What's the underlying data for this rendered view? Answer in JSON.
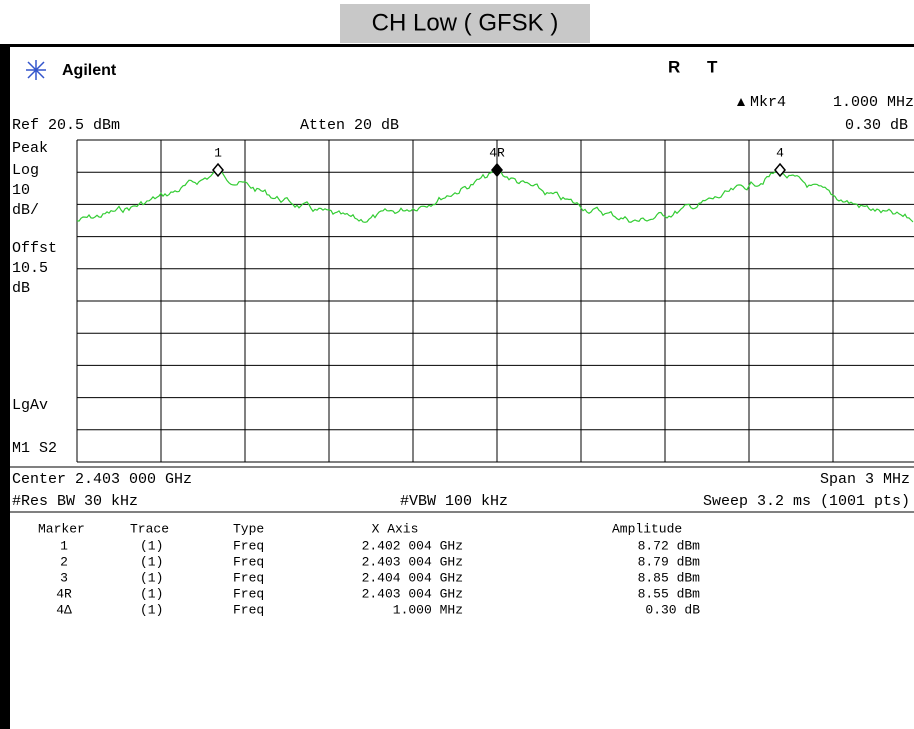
{
  "title": "CH Low ( GFSK )",
  "header": {
    "brand": "Agilent",
    "status": [
      "R",
      "T"
    ],
    "marker_name": "Mkr4",
    "marker_value": "1.000 MHz",
    "ref": "Ref 20.5 dBm",
    "atten": "Atten 20 dB",
    "marker_delta": "0.30 dB"
  },
  "left_labels": [
    "Peak",
    "Log",
    "10",
    "dB/",
    "Offst",
    "10.5",
    "dB",
    "LgAv",
    "M1  S2"
  ],
  "markers": [
    "1",
    "4R",
    "4"
  ],
  "footer": {
    "center": "Center 2.403 000 GHz",
    "span": "Span 3 MHz",
    "res_bw": "#Res BW 30 kHz",
    "vbw": "#VBW 100 kHz",
    "sweep": "Sweep 3.2 ms (1001 pts)"
  },
  "table": {
    "headers": [
      "Marker",
      "Trace",
      "Type",
      "X Axis",
      "Amplitude"
    ],
    "rows": [
      [
        "1",
        "(1)",
        "Freq",
        "2.402 004 GHz",
        "8.72 dBm"
      ],
      [
        "2",
        "(1)",
        "Freq",
        "2.403 004 GHz",
        "8.79 dBm"
      ],
      [
        "3",
        "(1)",
        "Freq",
        "2.404 004 GHz",
        "8.85 dBm"
      ],
      [
        "4R",
        "(1)",
        "Freq",
        "2.403 004 GHz",
        "8.55 dBm"
      ],
      [
        "4Δ",
        "(1)",
        "Freq",
        "1.000 MHz",
        "0.30 dB"
      ]
    ]
  }
}
